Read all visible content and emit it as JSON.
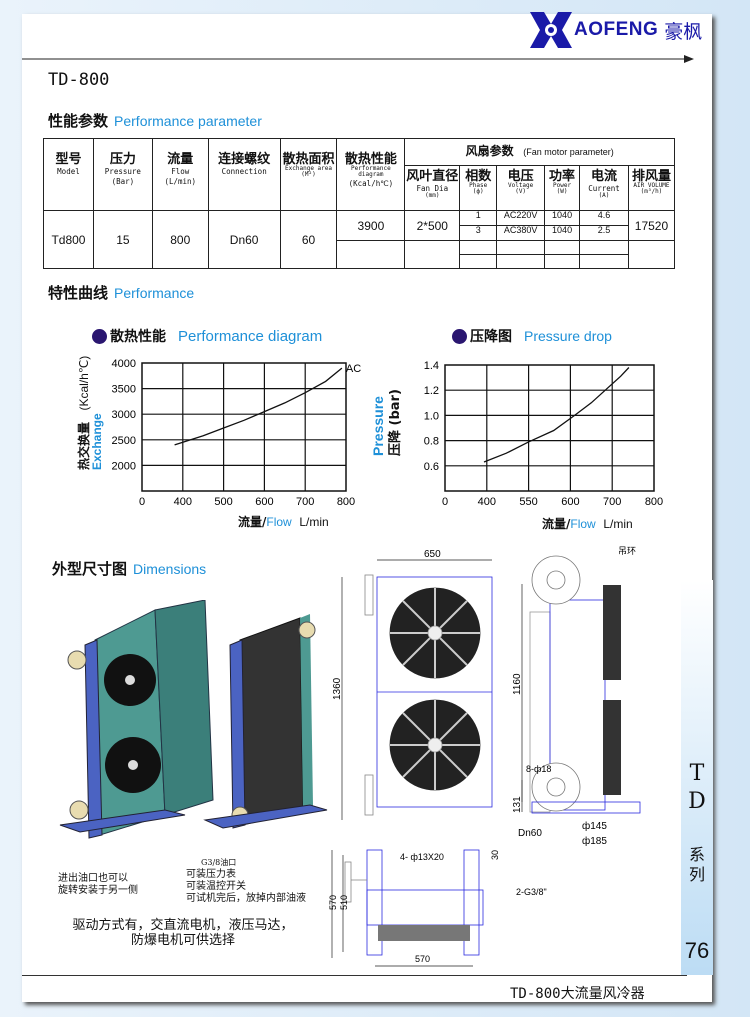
{
  "brand": {
    "logo_text": "AOFENG",
    "logo_cn": "豪枫",
    "logo_letter": "H",
    "color": "#1a1aa8"
  },
  "model_title": "TD-800",
  "performance_param": {
    "cn": "性能参数",
    "en": "Performance parameter"
  },
  "table": {
    "headers": [
      {
        "cn": "型号",
        "en": "Model"
      },
      {
        "cn": "压力",
        "en": "Pressure",
        "unit": "(Bar)"
      },
      {
        "cn": "流量",
        "en": "Flow",
        "unit": "(L/min)"
      },
      {
        "cn": "连接螺纹",
        "en": "Connection"
      },
      {
        "cn": "散热面积",
        "en": "Exchange area",
        "unit": "(M²)"
      },
      {
        "cn": "散热性能",
        "en": "Performance diagram",
        "unit": "(Kcal/h℃)"
      }
    ],
    "fan_header": {
      "cn": "风扇参数",
      "en": "(Fan motor parameter)"
    },
    "fan_headers": [
      {
        "cn": "风叶直径",
        "en": "Fan Dia",
        "unit": "(mm)"
      },
      {
        "cn": "相数",
        "en": "Phase",
        "unit": "(ф)"
      },
      {
        "cn": "电压",
        "en": "Voltage",
        "unit": "(V)"
      },
      {
        "cn": "功率",
        "en": "Power",
        "unit": "(W)"
      },
      {
        "cn": "电流",
        "en": "Current",
        "unit": "(A)"
      },
      {
        "cn": "排风量",
        "en": "AIR VOLUME",
        "unit": "(m³/h)"
      }
    ],
    "row": {
      "model": "Td800",
      "pressure": "15",
      "flow": "800",
      "connection": "Dn60",
      "area": "60",
      "performance": "3900",
      "fan_dia": "2*500",
      "air_volume": "17520",
      "motors": [
        {
          "phase": "1",
          "voltage": "AC220V",
          "power": "1040",
          "current": "4.6"
        },
        {
          "phase": "3",
          "voltage": "AC380V",
          "power": "1040",
          "current": "2.5"
        }
      ]
    }
  },
  "curves": {
    "cn": "特性曲线",
    "en": "Performance"
  },
  "chart_data": [
    {
      "type": "line",
      "title_cn": "散热性能",
      "title": "Performance diagram",
      "ylabel_cn": "热交换量",
      "ylabel": "Exchange",
      "yunit": "(Kcal/h℃)",
      "xlabel_cn": "流量/",
      "xlabel": "Flow",
      "xunit": "L/min",
      "x_ticks": [
        "0",
        "400",
        "500",
        "600",
        "700",
        "800"
      ],
      "y_ticks": [
        "4000",
        "3500",
        "3000",
        "2500",
        "2000"
      ],
      "grid": true,
      "series": [
        {
          "name": "AC",
          "x": [
            380,
            450,
            500,
            550,
            600,
            650,
            700,
            750,
            790
          ],
          "y": [
            2400,
            2580,
            2730,
            2880,
            3050,
            3220,
            3420,
            3640,
            3900
          ]
        }
      ]
    },
    {
      "type": "line",
      "title_cn": "压降图",
      "title": "Pressure drop",
      "ylabel": "Pressure",
      "ylabel_cn": "压降 (bar)",
      "xlabel_cn": "流量/",
      "xlabel": "Flow",
      "xunit": "L/min",
      "x_ticks": [
        "0",
        "400",
        "550",
        "600",
        "700",
        "800"
      ],
      "y_ticks": [
        "1.4",
        "1.2",
        "1.0",
        "0.8",
        "0.6"
      ],
      "grid": true,
      "series": [
        {
          "x": [
            390,
            470,
            550,
            580,
            610,
            650,
            690,
            720,
            740
          ],
          "y": [
            0.63,
            0.7,
            0.79,
            0.88,
            1.0,
            1.1,
            1.22,
            1.31,
            1.38
          ]
        }
      ]
    }
  ],
  "dimensions": {
    "cn": "外型尺寸图",
    "en": "Dimensions",
    "labels": {
      "w650": "650",
      "h1360": "1360",
      "lifting_ring": "吊环",
      "h1160": "1160",
      "holes": "8-ф18",
      "h131": "131",
      "dn60": "Dn60",
      "d145": "ф145",
      "d185": "ф185",
      "mount_holes": "4- ф13X20",
      "h30": "30",
      "h570": "570",
      "h510": "510",
      "ports": "2-G3/8\"",
      "w570": "570"
    },
    "note_left": [
      "进出油口也可以",
      "旋转安装于另一侧"
    ],
    "note_mid": [
      "G3/8油口",
      "可装压力表",
      "可装温控开关",
      "可试机完后，放掉内部油液"
    ],
    "note_drive": [
      "驱动方式有，交直流电机，液压马达，",
      "防爆电机可供选择"
    ]
  },
  "side_tab": {
    "series_letters": [
      "T",
      "D"
    ],
    "series_cn": [
      "系",
      "列"
    ],
    "page_number": "76"
  },
  "footer": "TD-800大流量风冷器"
}
